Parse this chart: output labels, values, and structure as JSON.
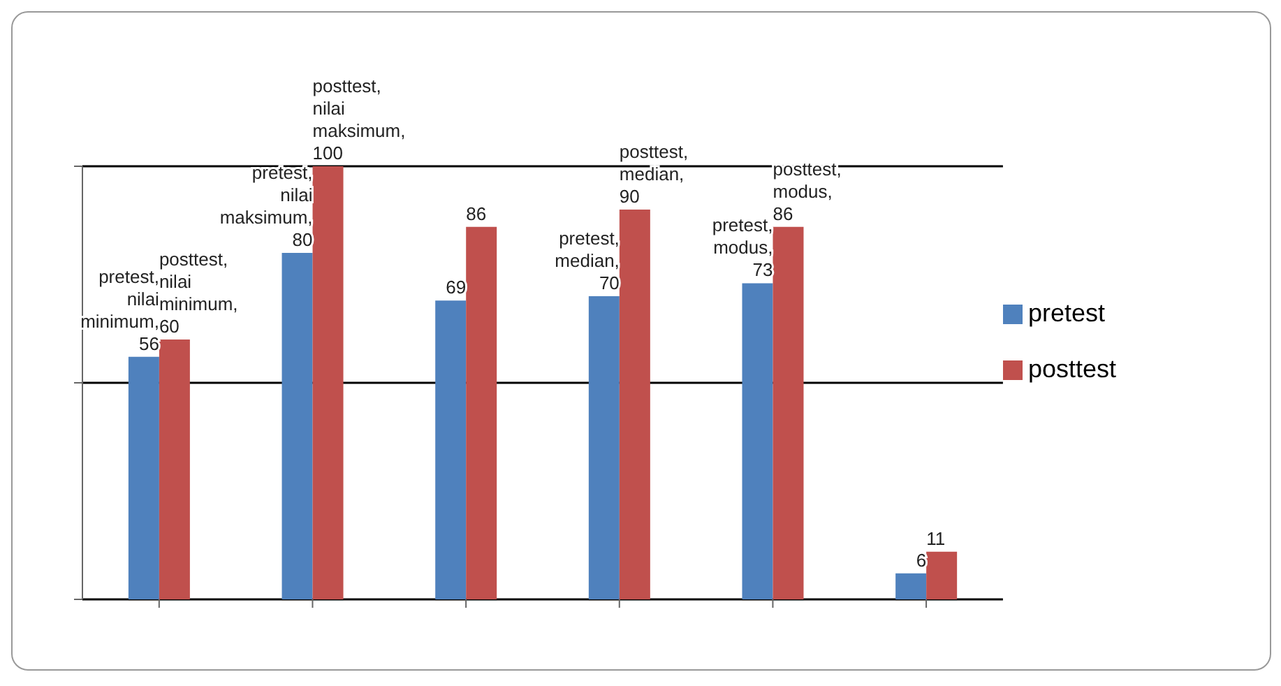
{
  "chart_data": {
    "type": "bar",
    "categories": [
      null,
      null,
      null,
      null,
      null,
      null
    ],
    "series": [
      {
        "name": "pretest",
        "color": "#4f81bd",
        "values": [
          56,
          80,
          69,
          70,
          73,
          6
        ],
        "value_labels": [
          "pretest, nilai minimum, 56",
          "pretest, nilai maksimum, 80",
          "69",
          "pretest, median, 70",
          "pretest, modus, 73",
          "6"
        ]
      },
      {
        "name": "posttest",
        "color": "#c0504d",
        "values": [
          60,
          100,
          86,
          90,
          86,
          11
        ],
        "value_labels": [
          "posttest, nilai minimum, 60",
          "posttest, nilai maksimum, 100",
          "86",
          "posttest, median, 90",
          "posttest, modus, 86",
          "11"
        ]
      }
    ],
    "ylim": [
      0,
      100
    ],
    "yticks": [
      {
        "value": 0,
        "label": null
      },
      {
        "value": 50,
        "label": null
      },
      {
        "value": 100,
        "label": null
      }
    ],
    "grid": "y",
    "legend": "right"
  }
}
